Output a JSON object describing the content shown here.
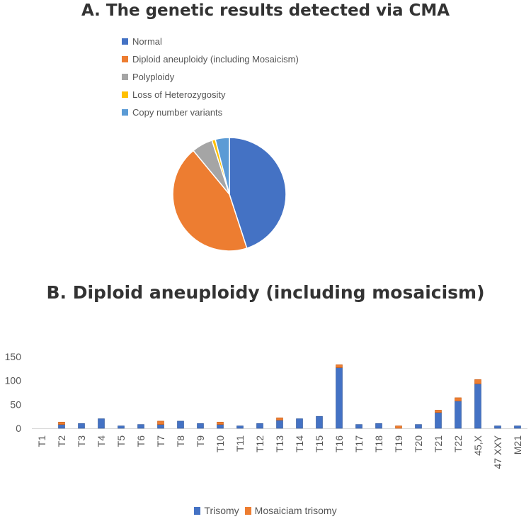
{
  "chart_data": [
    {
      "type": "pie",
      "title": "A. The genetic results detected via CMA",
      "legend_position": "top",
      "slices": [
        {
          "label": "Normal",
          "value": 45,
          "color": "#4472C4"
        },
        {
          "label": "Diploid aneuploidy  (including Mosaicism)",
          "value": 44,
          "color": "#ED7D31"
        },
        {
          "label": "Polyploidy",
          "value": 6,
          "color": "#A5A5A5"
        },
        {
          "label": "Loss of Heterozygosity",
          "value": 1,
          "color": "#FFC000"
        },
        {
          "label": "Copy number variants",
          "value": 4,
          "color": "#5B9BD5"
        }
      ]
    },
    {
      "type": "bar",
      "stacked": true,
      "title": "B. Diploid aneuploidy (including mosaicism)",
      "categories": [
        "T1",
        "T2",
        "T3",
        "T4",
        "T5",
        "T6",
        "T7",
        "T8",
        "T9",
        "T10",
        "T11",
        "T12",
        "T13",
        "T14",
        "T15",
        "T16",
        "T17",
        "T18",
        "T19",
        "T20",
        "T21",
        "T22",
        "45,X",
        "47 XXY",
        "M21"
      ],
      "series": [
        {
          "name": "Trisomy",
          "color": "#4472C4",
          "values": [
            0,
            8,
            10,
            20,
            5,
            8,
            8,
            15,
            10,
            8,
            5,
            10,
            17,
            20,
            25,
            127,
            8,
            10,
            0,
            8,
            33,
            57,
            93,
            5,
            5
          ]
        },
        {
          "name": "Mosaiciam trisomy",
          "color": "#ED7D31",
          "values": [
            0,
            5,
            0,
            0,
            0,
            0,
            7,
            0,
            0,
            5,
            0,
            0,
            5,
            0,
            0,
            6,
            0,
            0,
            5,
            0,
            5,
            7,
            9,
            0,
            0
          ]
        }
      ],
      "ylim": [
        0,
        150
      ],
      "yticks": [
        0,
        50,
        100,
        150
      ],
      "grid": false,
      "legend_position": "bottom"
    }
  ]
}
